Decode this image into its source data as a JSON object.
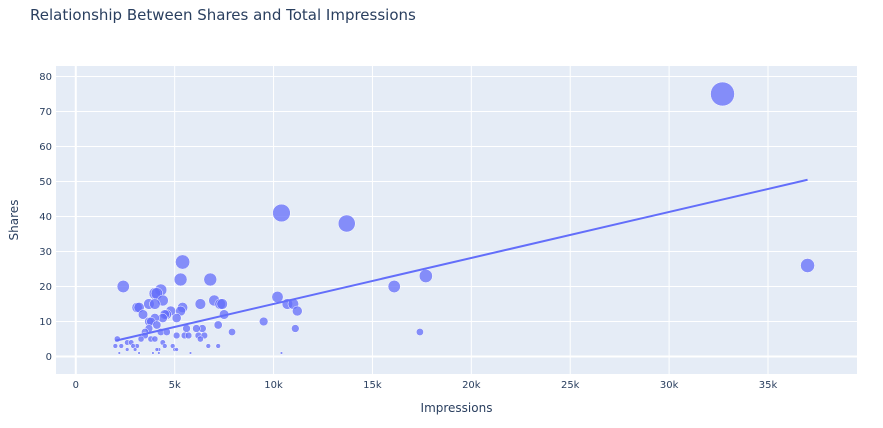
{
  "chart_data": {
    "type": "scatter",
    "title": "Relationship Between Shares and Total Impressions",
    "xlabel": "Impressions",
    "ylabel": "Shares",
    "xlim": [
      -1000,
      39500
    ],
    "ylim": [
      -5,
      83
    ],
    "xticks": [
      0,
      5000,
      10000,
      15000,
      20000,
      25000,
      30000,
      35000
    ],
    "xtick_labels": [
      "0",
      "5k",
      "10k",
      "15k",
      "20k",
      "25k",
      "30k",
      "35k"
    ],
    "yticks": [
      0,
      10,
      20,
      30,
      40,
      50,
      60,
      70,
      80
    ],
    "ytick_labels": [
      "0",
      "10",
      "20",
      "30",
      "40",
      "50",
      "60",
      "70",
      "80"
    ],
    "grid": true,
    "marker_color": "#636efa",
    "plot_bg": "#e5ecf6",
    "size_encodes": "Shares",
    "trendline": {
      "type": "ols",
      "x": [
        2000,
        37000
      ],
      "y": [
        4.5,
        50.5
      ]
    },
    "points": [
      {
        "x": 32700,
        "y": 75
      },
      {
        "x": 37000,
        "y": 26
      },
      {
        "x": 10400,
        "y": 41
      },
      {
        "x": 13700,
        "y": 38
      },
      {
        "x": 17700,
        "y": 23
      },
      {
        "x": 16100,
        "y": 20
      },
      {
        "x": 17400,
        "y": 7
      },
      {
        "x": 10200,
        "y": 17
      },
      {
        "x": 10700,
        "y": 15
      },
      {
        "x": 11000,
        "y": 15
      },
      {
        "x": 11200,
        "y": 13
      },
      {
        "x": 11100,
        "y": 8
      },
      {
        "x": 10400,
        "y": 1
      },
      {
        "x": 9500,
        "y": 10
      },
      {
        "x": 7900,
        "y": 7
      },
      {
        "x": 7500,
        "y": 12
      },
      {
        "x": 7300,
        "y": 15
      },
      {
        "x": 7400,
        "y": 15
      },
      {
        "x": 7000,
        "y": 16
      },
      {
        "x": 6800,
        "y": 22
      },
      {
        "x": 7200,
        "y": 9
      },
      {
        "x": 7200,
        "y": 3
      },
      {
        "x": 6300,
        "y": 15
      },
      {
        "x": 6400,
        "y": 8
      },
      {
        "x": 6100,
        "y": 8
      },
      {
        "x": 6200,
        "y": 6
      },
      {
        "x": 6300,
        "y": 5
      },
      {
        "x": 6500,
        "y": 6
      },
      {
        "x": 6700,
        "y": 3
      },
      {
        "x": 5400,
        "y": 27
      },
      {
        "x": 5300,
        "y": 22
      },
      {
        "x": 5400,
        "y": 14
      },
      {
        "x": 5300,
        "y": 13
      },
      {
        "x": 5100,
        "y": 11
      },
      {
        "x": 5600,
        "y": 8
      },
      {
        "x": 5500,
        "y": 6
      },
      {
        "x": 5700,
        "y": 6
      },
      {
        "x": 5100,
        "y": 6
      },
      {
        "x": 5000,
        "y": 2
      },
      {
        "x": 5100,
        "y": 2
      },
      {
        "x": 5800,
        "y": 1
      },
      {
        "x": 4800,
        "y": 13
      },
      {
        "x": 4300,
        "y": 19
      },
      {
        "x": 4000,
        "y": 18
      },
      {
        "x": 4100,
        "y": 18
      },
      {
        "x": 4400,
        "y": 16
      },
      {
        "x": 3700,
        "y": 15
      },
      {
        "x": 4000,
        "y": 15
      },
      {
        "x": 4600,
        "y": 12
      },
      {
        "x": 4500,
        "y": 12
      },
      {
        "x": 4400,
        "y": 11
      },
      {
        "x": 4000,
        "y": 11
      },
      {
        "x": 3700,
        "y": 10
      },
      {
        "x": 3800,
        "y": 10
      },
      {
        "x": 4100,
        "y": 9
      },
      {
        "x": 3700,
        "y": 8
      },
      {
        "x": 3500,
        "y": 7
      },
      {
        "x": 4300,
        "y": 7
      },
      {
        "x": 4600,
        "y": 7
      },
      {
        "x": 3800,
        "y": 5
      },
      {
        "x": 4000,
        "y": 5
      },
      {
        "x": 4400,
        "y": 4
      },
      {
        "x": 4500,
        "y": 3
      },
      {
        "x": 4900,
        "y": 3
      },
      {
        "x": 4200,
        "y": 2
      },
      {
        "x": 4100,
        "y": 2
      },
      {
        "x": 3900,
        "y": 1
      },
      {
        "x": 4200,
        "y": 1
      },
      {
        "x": 3100,
        "y": 14
      },
      {
        "x": 3200,
        "y": 14
      },
      {
        "x": 3400,
        "y": 12
      },
      {
        "x": 3500,
        "y": 6
      },
      {
        "x": 3300,
        "y": 5
      },
      {
        "x": 3100,
        "y": 3
      },
      {
        "x": 3000,
        "y": 2
      },
      {
        "x": 3200,
        "y": 1
      },
      {
        "x": 2400,
        "y": 20
      },
      {
        "x": 2100,
        "y": 5
      },
      {
        "x": 2600,
        "y": 4
      },
      {
        "x": 2800,
        "y": 4
      },
      {
        "x": 2900,
        "y": 3
      },
      {
        "x": 2300,
        "y": 3
      },
      {
        "x": 2000,
        "y": 3
      },
      {
        "x": 2600,
        "y": 2
      },
      {
        "x": 2200,
        "y": 1
      }
    ]
  }
}
